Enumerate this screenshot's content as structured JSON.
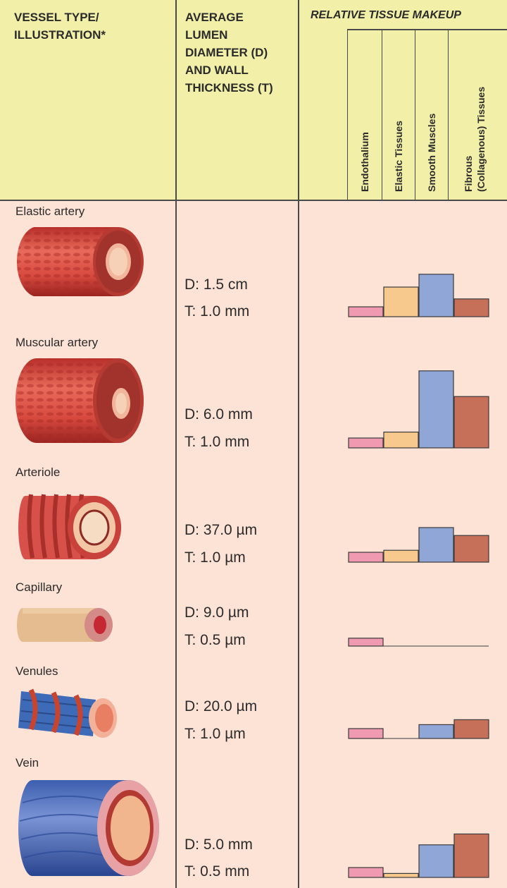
{
  "header": {
    "col1": "VESSEL TYPE/\nILLUSTRATION*",
    "col2": "AVERAGE\nLUMEN\nDIAMETER (D)\nAND WALL\nTHICKNESS (T)",
    "col3": "RELATIVE TISSUE MAKEUP",
    "tissues": [
      "Endothalium",
      "Elastic Tissues",
      "Smooth Muscles",
      "Fibrous\n(Collagenous) Tissues"
    ]
  },
  "colors": {
    "endothelium": "#ef9ab0",
    "elastic": "#f8c98c",
    "smooth": "#8fa6d6",
    "fibrous": "#c6705a"
  },
  "vessels": [
    {
      "name": "Elastic artery",
      "d": "D: 1.5 cm",
      "t": "T: 1.0 mm",
      "icon": "elastic-artery-illustration",
      "values": [
        1,
        3,
        4.3,
        1.8
      ]
    },
    {
      "name": "Muscular artery",
      "d": "D: 6.0 mm",
      "t": "T: 1.0 mm",
      "icon": "muscular-artery-illustration",
      "values": [
        1,
        1.6,
        7.8,
        5.2
      ]
    },
    {
      "name": "Arteriole",
      "d": "D: 37.0 µm",
      "t": "T: 1.0 µm",
      "icon": "arteriole-illustration",
      "values": [
        1,
        1.2,
        3.5,
        2.7
      ]
    },
    {
      "name": "Capillary",
      "d": "D: 9.0 µm",
      "t": "T: 0.5 µm",
      "icon": "capillary-illustration",
      "values": [
        0.8,
        0,
        0,
        0
      ]
    },
    {
      "name": "Venules",
      "d": "D: 20.0 µm",
      "t": "T: 1.0 µm",
      "icon": "venule-illustration",
      "values": [
        1,
        0,
        1.4,
        1.9
      ]
    },
    {
      "name": "Vein",
      "d": "D: 5.0 mm",
      "t": "T: 0.5 mm",
      "icon": "vein-illustration",
      "values": [
        1,
        0.4,
        3.3,
        4.4
      ]
    }
  ]
}
